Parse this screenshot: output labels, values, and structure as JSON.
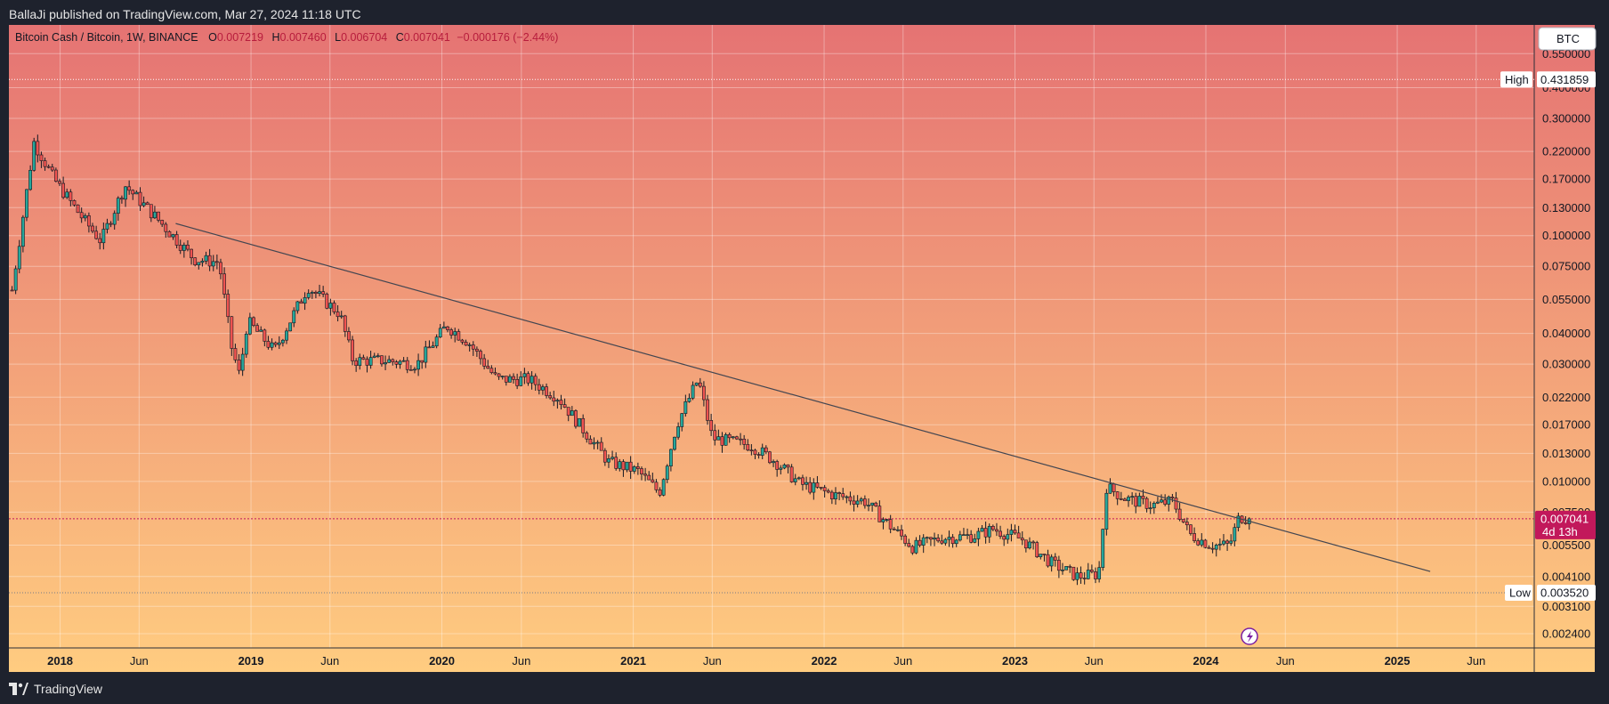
{
  "header": {
    "published": "BallaJi published on TradingView.com, Mar 27, 2024 11:18 UTC"
  },
  "footer": {
    "brand": "TradingView"
  },
  "legend": {
    "symbol": "Bitcoin Cash / Bitcoin, 1W, BINANCE",
    "o_label": "O",
    "o_value": "0.007219",
    "h_label": "H",
    "h_value": "0.007460",
    "l_label": "L",
    "l_value": "0.006704",
    "c_label": "C",
    "c_value": "0.007041",
    "change": "−0.000176 (−2.44%)"
  },
  "currency_button": "BTC",
  "markers": {
    "high_label": "High",
    "high_value": "0.431859",
    "low_label": "Low",
    "low_value": "0.003520",
    "last_value": "0.007041",
    "countdown": "4d 13h"
  },
  "colors": {
    "bg_top": "#e57373",
    "bg_bottom": "#ffcc80",
    "up": "#26a69a",
    "down": "#ef5350",
    "candle": "#131722",
    "last_price": "#c2185b",
    "trendline": "#434651"
  },
  "icons": [
    "lightning-icon",
    "tradingview-logo-icon"
  ],
  "chart_data": {
    "type": "candlestick",
    "title": "Bitcoin Cash / Bitcoin, 1W, BINANCE",
    "y_scale": "log",
    "ylim": [
      0.0021,
      0.72
    ],
    "y_ticks": [
      "0.550000",
      "0.400000",
      "0.300000",
      "0.220000",
      "0.170000",
      "0.130000",
      "0.100000",
      "0.075000",
      "0.055000",
      "0.040000",
      "0.030000",
      "0.022000",
      "0.017000",
      "0.013000",
      "0.010000",
      "0.007500",
      "0.005500",
      "0.004100",
      "0.003100",
      "0.002400"
    ],
    "x_ticks": [
      {
        "label": "2018",
        "date": "2018-01-01",
        "bold": true
      },
      {
        "label": "Jun",
        "date": "2018-06-01",
        "bold": false
      },
      {
        "label": "2019",
        "date": "2019-01-01",
        "bold": true
      },
      {
        "label": "Jun",
        "date": "2019-06-01",
        "bold": false
      },
      {
        "label": "2020",
        "date": "2020-01-01",
        "bold": true
      },
      {
        "label": "Jun",
        "date": "2020-06-01",
        "bold": false
      },
      {
        "label": "2021",
        "date": "2021-01-01",
        "bold": true
      },
      {
        "label": "Jun",
        "date": "2021-06-01",
        "bold": false
      },
      {
        "label": "2022",
        "date": "2022-01-01",
        "bold": true
      },
      {
        "label": "Jun",
        "date": "2022-06-01",
        "bold": false
      },
      {
        "label": "2023",
        "date": "2023-01-01",
        "bold": true
      },
      {
        "label": "Jun",
        "date": "2023-06-01",
        "bold": false
      },
      {
        "label": "2024",
        "date": "2024-01-01",
        "bold": true
      },
      {
        "label": "Jun",
        "date": "2024-06-01",
        "bold": false
      },
      {
        "label": "2025",
        "date": "2025-01-01",
        "bold": true
      },
      {
        "label": "Jun",
        "date": "2025-06-01",
        "bold": false
      }
    ],
    "x_range": [
      "2017-09-25",
      "2025-09-20"
    ],
    "high": 0.431859,
    "low": 0.00352,
    "last": 0.007041,
    "trendline": [
      {
        "date": "2018-08-10",
        "price": 0.112
      },
      {
        "date": "2025-03-05",
        "price": 0.0043
      }
    ],
    "price_path": [
      {
        "date": "2017-10-01",
        "price": 0.06
      },
      {
        "date": "2017-11-12",
        "price": 0.24
      },
      {
        "date": "2017-12-20",
        "price": 0.17
      },
      {
        "date": "2018-02-10",
        "price": 0.12
      },
      {
        "date": "2018-03-20",
        "price": 0.095
      },
      {
        "date": "2018-05-05",
        "price": 0.16
      },
      {
        "date": "2018-07-01",
        "price": 0.12
      },
      {
        "date": "2018-09-15",
        "price": 0.08
      },
      {
        "date": "2018-11-01",
        "price": 0.078
      },
      {
        "date": "2018-11-25",
        "price": 0.035
      },
      {
        "date": "2018-12-10",
        "price": 0.027
      },
      {
        "date": "2018-12-25",
        "price": 0.045
      },
      {
        "date": "2019-02-15",
        "price": 0.034
      },
      {
        "date": "2019-04-20",
        "price": 0.062
      },
      {
        "date": "2019-06-20",
        "price": 0.048
      },
      {
        "date": "2019-07-15",
        "price": 0.031
      },
      {
        "date": "2019-09-15",
        "price": 0.031
      },
      {
        "date": "2019-11-15",
        "price": 0.03
      },
      {
        "date": "2020-01-10",
        "price": 0.043
      },
      {
        "date": "2020-02-20",
        "price": 0.037
      },
      {
        "date": "2020-04-15",
        "price": 0.026
      },
      {
        "date": "2020-06-15",
        "price": 0.026
      },
      {
        "date": "2020-08-10",
        "price": 0.022
      },
      {
        "date": "2020-09-20",
        "price": 0.017
      },
      {
        "date": "2020-11-15",
        "price": 0.012
      },
      {
        "date": "2021-01-10",
        "price": 0.011
      },
      {
        "date": "2021-02-20",
        "price": 0.009
      },
      {
        "date": "2021-03-25",
        "price": 0.017
      },
      {
        "date": "2021-05-05",
        "price": 0.026
      },
      {
        "date": "2021-06-01",
        "price": 0.015
      },
      {
        "date": "2021-08-15",
        "price": 0.014
      },
      {
        "date": "2021-10-01",
        "price": 0.012
      },
      {
        "date": "2021-11-15",
        "price": 0.0098
      },
      {
        "date": "2022-01-20",
        "price": 0.0088
      },
      {
        "date": "2022-03-20",
        "price": 0.0083
      },
      {
        "date": "2022-05-10",
        "price": 0.0065
      },
      {
        "date": "2022-06-20",
        "price": 0.0054
      },
      {
        "date": "2022-08-15",
        "price": 0.0059
      },
      {
        "date": "2022-10-15",
        "price": 0.006
      },
      {
        "date": "2022-11-20",
        "price": 0.0064
      },
      {
        "date": "2023-01-15",
        "price": 0.0058
      },
      {
        "date": "2023-03-15",
        "price": 0.0046
      },
      {
        "date": "2023-05-01",
        "price": 0.0041
      },
      {
        "date": "2023-06-10",
        "price": 0.0042
      },
      {
        "date": "2023-06-25",
        "price": 0.0095
      },
      {
        "date": "2023-08-01",
        "price": 0.0085
      },
      {
        "date": "2023-09-20",
        "price": 0.008
      },
      {
        "date": "2023-10-30",
        "price": 0.0083
      },
      {
        "date": "2023-12-01",
        "price": 0.0061
      },
      {
        "date": "2024-01-10",
        "price": 0.0055
      },
      {
        "date": "2024-02-15",
        "price": 0.0055
      },
      {
        "date": "2024-03-05",
        "price": 0.0072
      },
      {
        "date": "2024-03-25",
        "price": 0.00704
      }
    ]
  }
}
